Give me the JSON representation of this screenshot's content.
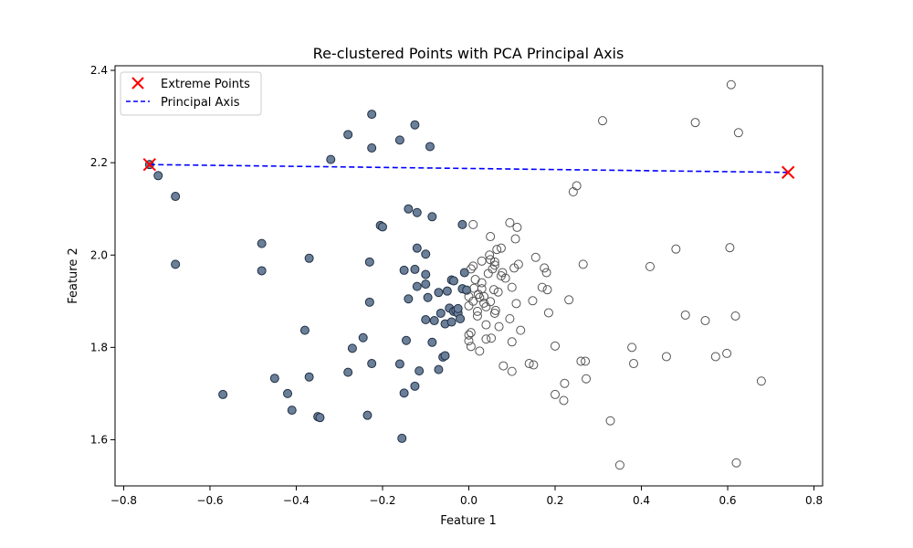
{
  "chart_data": {
    "type": "scatter",
    "title": "Re-clustered Points with PCA Principal Axis",
    "xlabel": "Feature 1",
    "ylabel": "Feature 2",
    "xlim": [
      -0.82,
      0.82
    ],
    "ylim": [
      1.5,
      2.41
    ],
    "xticks": [
      -0.8,
      -0.6,
      -0.4,
      -0.2,
      0.0,
      0.2,
      0.4,
      0.6,
      0.8
    ],
    "xtick_labels": [
      "−0.8",
      "−0.6",
      "−0.4",
      "−0.2",
      "0.0",
      "0.2",
      "0.4",
      "0.6",
      "0.8"
    ],
    "yticks": [
      1.6,
      1.8,
      2.0,
      2.2,
      2.4
    ],
    "ytick_labels": [
      "1.6",
      "1.8",
      "2.0",
      "2.2",
      "2.4"
    ],
    "grid": false,
    "legend_position": "upper-left",
    "legend": [
      {
        "label": "Extreme Points",
        "marker": "x",
        "color": "#ff0000"
      },
      {
        "label": "Principal Axis",
        "style": "dashed",
        "color": "#0000ff"
      }
    ],
    "colors": {
      "cluster_filled_face": "#6b7f99",
      "cluster_filled_edge": "#1f2f44",
      "cluster_hollow_edge": "#555555",
      "extreme": "#ff0000",
      "axis_line": "#0000ff"
    },
    "principal_axis": [
      [
        -0.74,
        2.196
      ],
      [
        0.74,
        2.179
      ]
    ],
    "extreme_points": [
      [
        -0.74,
        2.196
      ],
      [
        0.74,
        2.179
      ]
    ],
    "series": [
      {
        "style": "filled",
        "points": [
          [
            -0.74,
            2.196
          ],
          [
            -0.72,
            2.172
          ],
          [
            -0.68,
            2.127
          ],
          [
            -0.68,
            1.98
          ],
          [
            -0.57,
            1.698
          ],
          [
            -0.48,
            2.025
          ],
          [
            -0.48,
            1.966
          ],
          [
            -0.45,
            1.733
          ],
          [
            -0.42,
            1.7
          ],
          [
            -0.41,
            1.664
          ],
          [
            -0.38,
            1.837
          ],
          [
            -0.37,
            1.993
          ],
          [
            -0.37,
            1.736
          ],
          [
            -0.35,
            1.65
          ],
          [
            -0.345,
            1.648
          ],
          [
            -0.32,
            2.207
          ],
          [
            -0.28,
            2.261
          ],
          [
            -0.28,
            1.746
          ],
          [
            -0.27,
            1.798
          ],
          [
            -0.245,
            1.821
          ],
          [
            -0.235,
            1.653
          ],
          [
            -0.23,
            1.985
          ],
          [
            -0.23,
            1.898
          ],
          [
            -0.225,
            2.305
          ],
          [
            -0.225,
            2.232
          ],
          [
            -0.225,
            1.765
          ],
          [
            -0.205,
            2.064
          ],
          [
            -0.2,
            2.061
          ],
          [
            -0.16,
            2.249
          ],
          [
            -0.16,
            1.764
          ],
          [
            -0.155,
            1.603
          ],
          [
            -0.15,
            1.967
          ],
          [
            -0.15,
            1.701
          ],
          [
            -0.145,
            1.815
          ],
          [
            -0.14,
            1.905
          ],
          [
            -0.14,
            2.1
          ],
          [
            -0.125,
            2.282
          ],
          [
            -0.125,
            1.969
          ],
          [
            -0.125,
            1.716
          ],
          [
            -0.12,
            2.015
          ],
          [
            -0.12,
            2.092
          ],
          [
            -0.12,
            1.932
          ],
          [
            -0.115,
            1.749
          ],
          [
            -0.1,
            1.958
          ],
          [
            -0.1,
            2.002
          ],
          [
            -0.1,
            1.937
          ],
          [
            -0.095,
            1.908
          ],
          [
            -0.1,
            1.86
          ],
          [
            -0.09,
            2.235
          ],
          [
            -0.085,
            2.083
          ],
          [
            -0.085,
            1.811
          ],
          [
            -0.08,
            1.858
          ],
          [
            -0.07,
            1.919
          ],
          [
            -0.07,
            1.752
          ],
          [
            -0.065,
            1.874
          ],
          [
            -0.06,
            1.779
          ],
          [
            -0.055,
            1.782
          ],
          [
            -0.055,
            1.851
          ],
          [
            -0.05,
            1.922
          ],
          [
            -0.045,
            1.885
          ],
          [
            -0.04,
            1.946
          ],
          [
            -0.04,
            1.855
          ],
          [
            -0.035,
            1.944
          ],
          [
            -0.035,
            1.878
          ],
          [
            -0.03,
            1.88
          ],
          [
            -0.025,
            1.874
          ],
          [
            -0.025,
            1.884
          ],
          [
            -0.02,
            1.862
          ],
          [
            -0.015,
            2.066
          ],
          [
            -0.015,
            1.927
          ],
          [
            -0.01,
            1.962
          ],
          [
            -0.005,
            1.924
          ]
        ]
      },
      {
        "style": "hollow",
        "points": [
          [
            0.0,
            1.89
          ],
          [
            0.0,
            1.91
          ],
          [
            0.0,
            1.827
          ],
          [
            0.0,
            1.814
          ],
          [
            0.005,
            1.832
          ],
          [
            0.005,
            1.802
          ],
          [
            0.005,
            1.97
          ],
          [
            0.01,
            2.066
          ],
          [
            0.01,
            1.976
          ],
          [
            0.01,
            1.9
          ],
          [
            0.012,
            1.928
          ],
          [
            0.015,
            1.947
          ],
          [
            0.02,
            1.878
          ],
          [
            0.02,
            1.868
          ],
          [
            0.022,
            1.915
          ],
          [
            0.025,
            1.908
          ],
          [
            0.025,
            1.792
          ],
          [
            0.03,
            1.94
          ],
          [
            0.03,
            1.987
          ],
          [
            0.03,
            1.927
          ],
          [
            0.035,
            1.91
          ],
          [
            0.035,
            1.896
          ],
          [
            0.04,
            1.849
          ],
          [
            0.04,
            1.888
          ],
          [
            0.04,
            1.818
          ],
          [
            0.045,
            1.96
          ],
          [
            0.048,
            2.0
          ],
          [
            0.05,
            1.99
          ],
          [
            0.05,
            2.04
          ],
          [
            0.05,
            1.899
          ],
          [
            0.052,
            1.82
          ],
          [
            0.055,
            1.97
          ],
          [
            0.058,
            1.925
          ],
          [
            0.06,
            1.874
          ],
          [
            0.06,
            1.985
          ],
          [
            0.06,
            1.978
          ],
          [
            0.062,
            1.88
          ],
          [
            0.065,
            2.012
          ],
          [
            0.068,
            1.92
          ],
          [
            0.07,
            1.845
          ],
          [
            0.075,
            1.955
          ],
          [
            0.075,
            2.015
          ],
          [
            0.078,
            1.962
          ],
          [
            0.08,
            1.76
          ],
          [
            0.085,
            1.95
          ],
          [
            0.095,
            2.07
          ],
          [
            0.095,
            1.862
          ],
          [
            0.1,
            1.748
          ],
          [
            0.1,
            1.93
          ],
          [
            0.1,
            1.812
          ],
          [
            0.105,
            1.972
          ],
          [
            0.108,
            2.035
          ],
          [
            0.11,
            1.895
          ],
          [
            0.112,
            2.06
          ],
          [
            0.115,
            1.98
          ],
          [
            0.12,
            1.837
          ],
          [
            0.14,
            1.765
          ],
          [
            0.148,
            1.901
          ],
          [
            0.15,
            1.762
          ],
          [
            0.155,
            1.995
          ],
          [
            0.17,
            1.93
          ],
          [
            0.175,
            1.972
          ],
          [
            0.18,
            1.962
          ],
          [
            0.182,
            1.925
          ],
          [
            0.185,
            1.875
          ],
          [
            0.2,
            1.698
          ],
          [
            0.2,
            1.803
          ],
          [
            0.22,
            1.685
          ],
          [
            0.222,
            1.722
          ],
          [
            0.232,
            1.903
          ],
          [
            0.242,
            2.137
          ],
          [
            0.25,
            2.15
          ],
          [
            0.26,
            1.77
          ],
          [
            0.265,
            1.98
          ],
          [
            0.27,
            1.77
          ],
          [
            0.272,
            1.732
          ],
          [
            0.31,
            2.291
          ],
          [
            0.328,
            1.641
          ],
          [
            0.35,
            1.545
          ],
          [
            0.378,
            1.8
          ],
          [
            0.382,
            1.765
          ],
          [
            0.42,
            1.975
          ],
          [
            0.458,
            1.78
          ],
          [
            0.48,
            2.013
          ],
          [
            0.502,
            1.87
          ],
          [
            0.525,
            2.287
          ],
          [
            0.548,
            1.858
          ],
          [
            0.572,
            1.78
          ],
          [
            0.598,
            1.787
          ],
          [
            0.605,
            2.016
          ],
          [
            0.608,
            2.369
          ],
          [
            0.618,
            1.868
          ],
          [
            0.62,
            1.55
          ],
          [
            0.625,
            2.265
          ],
          [
            0.678,
            1.727
          ]
        ]
      }
    ]
  }
}
